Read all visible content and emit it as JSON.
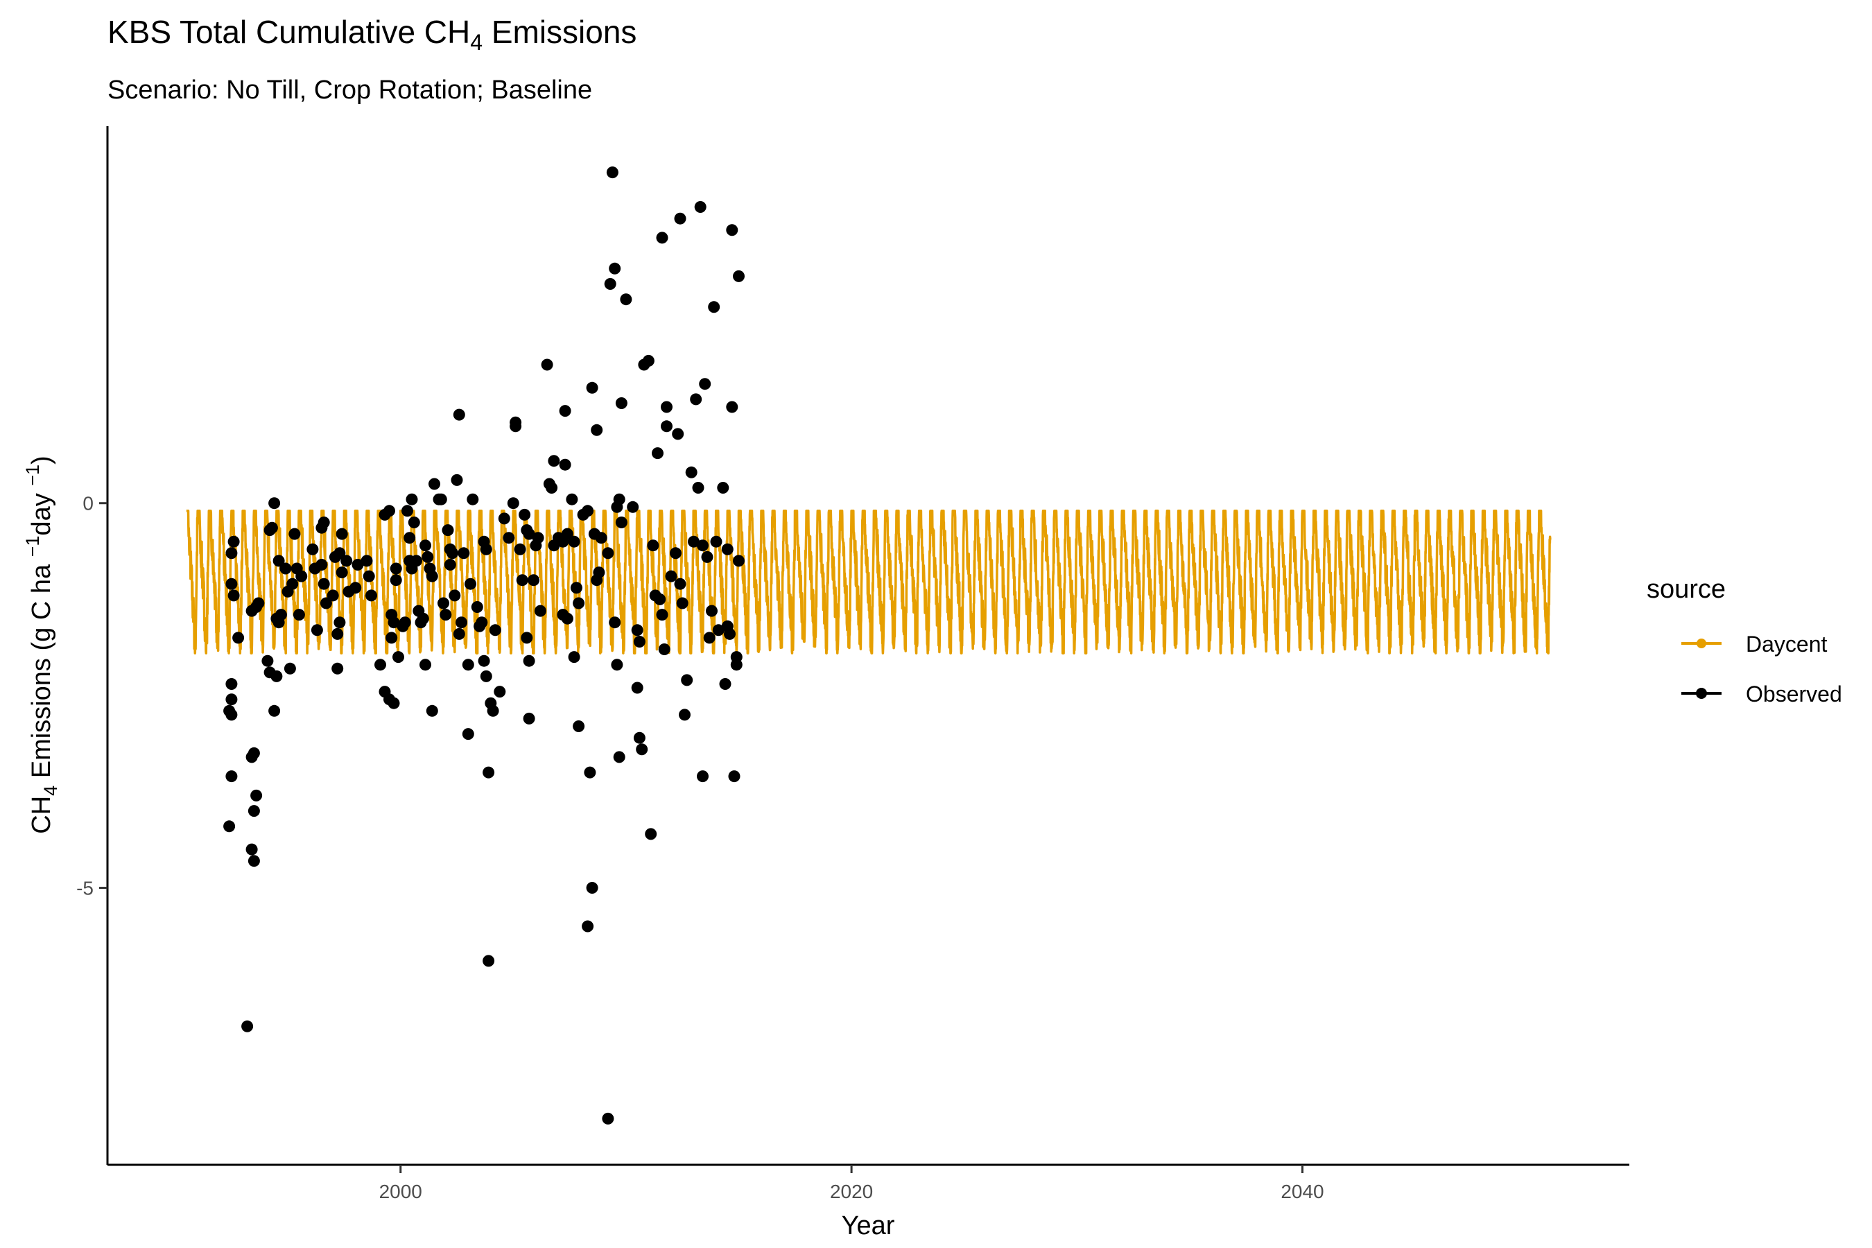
{
  "chart_data": {
    "type": "scatter",
    "title_main": "KBS Total Cumulative CH",
    "title_sub": "4",
    "title_tail": " Emissions",
    "subtitle": "Scenario: No Till, Crop Rotation; Baseline",
    "xlabel": "Year",
    "ylabel_main": "CH",
    "ylabel_sub": "4",
    "ylabel_mid": " Emissions (g C ha ",
    "ylabel_sup1": "−1",
    "ylabel_mid2": "day ",
    "ylabel_sup2": "−1",
    "ylabel_close": ")",
    "xlim": [
      1987,
      2054.5
    ],
    "ylim": [
      -8.6,
      4.9
    ],
    "x_ticks": [
      {
        "value": 2000,
        "label": "2000"
      },
      {
        "value": 2020,
        "label": "2020"
      },
      {
        "value": 2040,
        "label": "2040"
      }
    ],
    "y_ticks": [
      {
        "value": 0,
        "label": "0"
      },
      {
        "value": -5,
        "label": "-5"
      }
    ],
    "grid": false,
    "legend": {
      "title": "source",
      "position": "right",
      "entries": [
        {
          "name": "Daycent",
          "color": "#E69F00"
        },
        {
          "name": "Observed",
          "color": "#000000"
        }
      ]
    },
    "series": [
      {
        "name": "Daycent",
        "kind": "line",
        "color": "#E69F00",
        "x_start": 1990.5,
        "x_end": 2051.0,
        "daily_series_profile": {
          "min": -1.95,
          "max": -0.1,
          "typical_low": -1.7,
          "typical_high": -0.6,
          "cycles_per_year": 2
        }
      },
      {
        "name": "Observed",
        "kind": "points",
        "color": "#000000",
        "points": [
          [
            1992.5,
            -0.65
          ],
          [
            1992.6,
            -0.5
          ],
          [
            1992.5,
            -1.05
          ],
          [
            1992.6,
            -1.2
          ],
          [
            1992.8,
            -1.75
          ],
          [
            1992.5,
            -2.35
          ],
          [
            1992.5,
            -2.55
          ],
          [
            1992.4,
            -2.7
          ],
          [
            1992.5,
            -2.75
          ],
          [
            1992.5,
            -3.55
          ],
          [
            1992.4,
            -4.2
          ],
          [
            1993.2,
            -6.8
          ],
          [
            1993.4,
            -3.3
          ],
          [
            1993.5,
            -3.25
          ],
          [
            1993.6,
            -3.8
          ],
          [
            1993.5,
            -4.0
          ],
          [
            1993.4,
            -4.5
          ],
          [
            1993.5,
            -4.65
          ],
          [
            1993.4,
            -1.4
          ],
          [
            1993.6,
            -1.35
          ],
          [
            1993.7,
            -1.3
          ],
          [
            1994.1,
            -2.05
          ],
          [
            1994.2,
            -0.35
          ],
          [
            1994.3,
            -0.32
          ],
          [
            1994.4,
            -0.0
          ],
          [
            1994.2,
            -2.2
          ],
          [
            1994.5,
            -2.25
          ],
          [
            1994.4,
            -2.7
          ],
          [
            1994.5,
            -1.5
          ],
          [
            1994.6,
            -1.55
          ],
          [
            1994.7,
            -1.45
          ],
          [
            1994.6,
            -0.75
          ],
          [
            1994.9,
            -0.85
          ],
          [
            1995.0,
            -1.15
          ],
          [
            1995.2,
            -1.05
          ],
          [
            1995.3,
            -0.4
          ],
          [
            1995.4,
            -0.85
          ],
          [
            1995.5,
            -1.45
          ],
          [
            1995.6,
            -0.95
          ],
          [
            1995.1,
            -2.15
          ],
          [
            1996.1,
            -0.6
          ],
          [
            1996.2,
            -0.85
          ],
          [
            1996.3,
            -1.65
          ],
          [
            1996.5,
            -0.32
          ],
          [
            1996.6,
            -0.25
          ],
          [
            1996.6,
            -1.05
          ],
          [
            1996.7,
            -1.3
          ],
          [
            1996.5,
            -0.8
          ],
          [
            1997.0,
            -1.2
          ],
          [
            1997.1,
            -0.7
          ],
          [
            1997.2,
            -2.15
          ],
          [
            1997.3,
            -0.65
          ],
          [
            1997.4,
            -0.9
          ],
          [
            1997.3,
            -1.55
          ],
          [
            1997.2,
            -1.7
          ],
          [
            1997.4,
            -0.4
          ],
          [
            1997.6,
            -0.75
          ],
          [
            1997.7,
            -1.15
          ],
          [
            1998.0,
            -1.1
          ],
          [
            1998.1,
            -0.8
          ],
          [
            1998.5,
            -0.75
          ],
          [
            1998.6,
            -0.95
          ],
          [
            1998.7,
            -1.2
          ],
          [
            1999.1,
            -2.1
          ],
          [
            1999.3,
            -2.45
          ],
          [
            1999.5,
            -2.55
          ],
          [
            1999.7,
            -2.6
          ],
          [
            1999.8,
            -1.0
          ],
          [
            1999.3,
            -0.15
          ],
          [
            1999.5,
            -0.1
          ],
          [
            1999.8,
            -0.85
          ],
          [
            1999.6,
            -1.45
          ],
          [
            1999.7,
            -1.55
          ],
          [
            1999.6,
            -1.75
          ],
          [
            1999.9,
            -2.0
          ],
          [
            2000.1,
            -1.6
          ],
          [
            2000.2,
            -1.55
          ],
          [
            2000.4,
            -0.45
          ],
          [
            2000.6,
            -0.25
          ],
          [
            2000.7,
            -0.75
          ],
          [
            2000.3,
            -0.1
          ],
          [
            2000.5,
            0.05
          ],
          [
            2000.4,
            -0.75
          ],
          [
            2000.5,
            -0.85
          ],
          [
            2000.8,
            -1.4
          ],
          [
            2000.9,
            -1.55
          ],
          [
            2001.0,
            -1.5
          ],
          [
            2001.1,
            -0.55
          ],
          [
            2001.2,
            -0.7
          ],
          [
            2001.3,
            -0.85
          ],
          [
            2001.4,
            -0.95
          ],
          [
            2001.1,
            -2.1
          ],
          [
            2001.4,
            -2.7
          ],
          [
            2001.5,
            0.25
          ],
          [
            2001.7,
            0.05
          ],
          [
            2001.8,
            0.05
          ],
          [
            2001.9,
            -1.3
          ],
          [
            2002.0,
            -1.45
          ],
          [
            2002.1,
            -0.35
          ],
          [
            2002.2,
            -0.6
          ],
          [
            2002.3,
            -0.65
          ],
          [
            2002.2,
            -0.8
          ],
          [
            2002.4,
            -1.2
          ],
          [
            2002.5,
            0.3
          ],
          [
            2002.6,
            1.15
          ],
          [
            2002.7,
            -1.55
          ],
          [
            2002.6,
            -1.7
          ],
          [
            2002.8,
            -0.65
          ],
          [
            2003.0,
            -2.1
          ],
          [
            2003.0,
            -3.0
          ],
          [
            2003.2,
            0.05
          ],
          [
            2003.1,
            -1.05
          ],
          [
            2003.4,
            -1.35
          ],
          [
            2003.5,
            -1.6
          ],
          [
            2003.7,
            -0.5
          ],
          [
            2003.8,
            -0.6
          ],
          [
            2003.6,
            -1.55
          ],
          [
            2003.7,
            -2.05
          ],
          [
            2003.8,
            -2.25
          ],
          [
            2003.9,
            -3.5
          ],
          [
            2003.9,
            -5.95
          ],
          [
            2004.0,
            -2.6
          ],
          [
            2004.1,
            -2.7
          ],
          [
            2004.2,
            -1.65
          ],
          [
            2004.4,
            -2.45
          ],
          [
            2004.6,
            -0.2
          ],
          [
            2004.8,
            -0.45
          ],
          [
            2005.0,
            0.0
          ],
          [
            2005.1,
            1.0
          ],
          [
            2005.1,
            1.05
          ],
          [
            2005.3,
            -0.6
          ],
          [
            2005.5,
            -0.15
          ],
          [
            2005.6,
            -0.35
          ],
          [
            2005.7,
            -0.4
          ],
          [
            2005.4,
            -1.0
          ],
          [
            2005.6,
            -1.75
          ],
          [
            2005.9,
            -1.0
          ],
          [
            2006.0,
            -0.55
          ],
          [
            2006.1,
            -0.45
          ],
          [
            2006.2,
            -1.4
          ],
          [
            2005.7,
            -2.05
          ],
          [
            2005.7,
            -2.8
          ],
          [
            2006.5,
            1.8
          ],
          [
            2006.6,
            0.25
          ],
          [
            2006.7,
            0.2
          ],
          [
            2006.8,
            0.55
          ],
          [
            2006.8,
            -0.55
          ],
          [
            2007.0,
            -0.45
          ],
          [
            2007.2,
            -0.5
          ],
          [
            2007.3,
            0.5
          ],
          [
            2007.4,
            -0.4
          ],
          [
            2007.2,
            -1.45
          ],
          [
            2007.4,
            -1.5
          ],
          [
            2007.6,
            0.05
          ],
          [
            2007.7,
            -0.5
          ],
          [
            2007.8,
            -1.1
          ],
          [
            2007.9,
            -1.3
          ],
          [
            2007.7,
            -2.0
          ],
          [
            2007.9,
            -2.9
          ],
          [
            2007.3,
            1.2
          ],
          [
            2008.1,
            -0.15
          ],
          [
            2008.3,
            -0.1
          ],
          [
            2008.4,
            -3.5
          ],
          [
            2008.5,
            1.5
          ],
          [
            2008.6,
            -0.4
          ],
          [
            2008.7,
            -1.0
          ],
          [
            2008.8,
            -0.9
          ],
          [
            2008.5,
            -5.0
          ],
          [
            2008.3,
            -5.5
          ],
          [
            2008.7,
            0.95
          ],
          [
            2008.9,
            -0.45
          ],
          [
            2009.2,
            -0.65
          ],
          [
            2009.3,
            2.85
          ],
          [
            2009.5,
            3.05
          ],
          [
            2009.4,
            4.3
          ],
          [
            2009.6,
            -0.05
          ],
          [
            2009.7,
            0.05
          ],
          [
            2009.8,
            -0.25
          ],
          [
            2009.5,
            -1.55
          ],
          [
            2009.6,
            -2.1
          ],
          [
            2009.7,
            -3.3
          ],
          [
            2009.8,
            1.3
          ],
          [
            2009.2,
            -8.0
          ],
          [
            2010.0,
            2.65
          ],
          [
            2010.3,
            -0.05
          ],
          [
            2010.5,
            -1.65
          ],
          [
            2010.6,
            -1.8
          ],
          [
            2010.5,
            -2.4
          ],
          [
            2010.6,
            -3.05
          ],
          [
            2010.7,
            -3.2
          ],
          [
            2010.8,
            1.8
          ],
          [
            2011.0,
            1.85
          ],
          [
            2011.1,
            -4.3
          ],
          [
            2011.2,
            -0.55
          ],
          [
            2011.3,
            -1.2
          ],
          [
            2011.4,
            0.65
          ],
          [
            2011.5,
            -1.25
          ],
          [
            2011.6,
            -1.45
          ],
          [
            2011.7,
            -1.9
          ],
          [
            2011.8,
            1.0
          ],
          [
            2011.6,
            3.45
          ],
          [
            2011.8,
            1.25
          ],
          [
            2012.0,
            -0.95
          ],
          [
            2012.2,
            -0.65
          ],
          [
            2012.3,
            0.9
          ],
          [
            2012.4,
            -1.05
          ],
          [
            2012.5,
            -1.3
          ],
          [
            2012.6,
            -2.75
          ],
          [
            2012.7,
            -2.3
          ],
          [
            2012.4,
            3.7
          ],
          [
            2012.9,
            0.4
          ],
          [
            2013.0,
            -0.5
          ],
          [
            2013.1,
            1.35
          ],
          [
            2013.2,
            0.2
          ],
          [
            2013.4,
            -0.55
          ],
          [
            2013.3,
            3.85
          ],
          [
            2013.5,
            1.55
          ],
          [
            2013.6,
            -0.7
          ],
          [
            2013.7,
            -1.75
          ],
          [
            2013.8,
            -1.4
          ],
          [
            2013.9,
            2.55
          ],
          [
            2014.0,
            -0.5
          ],
          [
            2014.1,
            -1.65
          ],
          [
            2014.3,
            0.2
          ],
          [
            2014.4,
            -2.35
          ],
          [
            2014.5,
            -1.6
          ],
          [
            2014.6,
            -1.7
          ],
          [
            2014.5,
            -0.6
          ],
          [
            2014.7,
            3.55
          ],
          [
            2014.8,
            -3.55
          ],
          [
            2014.9,
            -2.0
          ],
          [
            2015.0,
            -0.75
          ],
          [
            2014.7,
            1.25
          ],
          [
            2015.0,
            2.95
          ],
          [
            2014.9,
            -2.1
          ],
          [
            2013.4,
            -3.55
          ]
        ]
      }
    ]
  }
}
